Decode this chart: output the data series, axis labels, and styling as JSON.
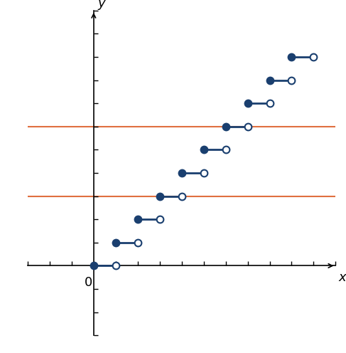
{
  "xlim": [
    -3,
    11
  ],
  "ylim": [
    -3,
    11
  ],
  "steps": [
    {
      "x_start": 0,
      "x_end": 1,
      "y": 0
    },
    {
      "x_start": 1,
      "x_end": 2,
      "y": 1
    },
    {
      "x_start": 2,
      "x_end": 3,
      "y": 2
    },
    {
      "x_start": 3,
      "x_end": 4,
      "y": 3
    },
    {
      "x_start": 4,
      "x_end": 5,
      "y": 4
    },
    {
      "x_start": 5,
      "x_end": 6,
      "y": 5
    },
    {
      "x_start": 6,
      "x_end": 7,
      "y": 6
    },
    {
      "x_start": 7,
      "x_end": 8,
      "y": 7
    },
    {
      "x_start": 8,
      "x_end": 9,
      "y": 8
    },
    {
      "x_start": 9,
      "x_end": 10,
      "y": 9
    }
  ],
  "step_color": "#1a3f6f",
  "orange_lines": [
    3,
    6
  ],
  "orange_color": "#e07040",
  "marker_size": 7,
  "line_width": 2,
  "xlabel": "x",
  "ylabel": "y",
  "zero_label": "0",
  "background_color": "#ffffff",
  "fig_width": 4.87,
  "fig_height": 4.96,
  "dpi": 100
}
